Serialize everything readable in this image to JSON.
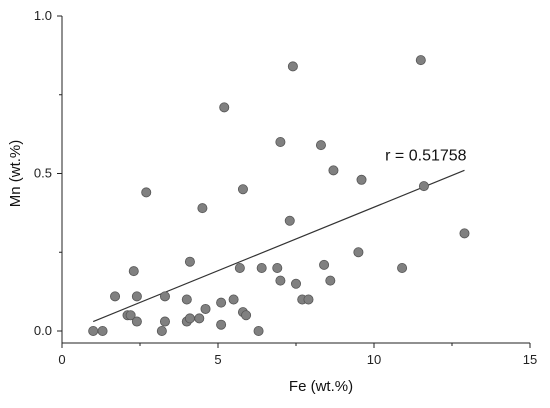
{
  "chart_data": {
    "type": "scatter",
    "xlabel": "Fe (wt.%)",
    "ylabel": "Mn (wt.%)",
    "xlim": [
      0,
      15
    ],
    "ylim": [
      0,
      1.0
    ],
    "x_ticks": [
      "0",
      "5",
      "10",
      "15"
    ],
    "y_ticks": [
      "0.0",
      "0.5",
      "1.0"
    ],
    "grid": false,
    "colors": {
      "point": "#808080",
      "point_edge": "#555555",
      "line": "#333333"
    },
    "annotation": {
      "text": "r = 0.51758",
      "x": 11.8,
      "y": 0.56
    },
    "trendline": {
      "x": [
        1.0,
        12.9
      ],
      "y": [
        0.03,
        0.51
      ]
    },
    "points": [
      {
        "x": 1.0,
        "y": 0.0
      },
      {
        "x": 1.3,
        "y": 0.0
      },
      {
        "x": 1.7,
        "y": 0.11
      },
      {
        "x": 2.1,
        "y": 0.05
      },
      {
        "x": 2.2,
        "y": 0.05
      },
      {
        "x": 2.3,
        "y": 0.19
      },
      {
        "x": 2.4,
        "y": 0.03
      },
      {
        "x": 2.4,
        "y": 0.11
      },
      {
        "x": 2.7,
        "y": 0.44
      },
      {
        "x": 3.2,
        "y": 0.0
      },
      {
        "x": 3.3,
        "y": 0.11
      },
      {
        "x": 3.3,
        "y": 0.03
      },
      {
        "x": 4.0,
        "y": 0.1
      },
      {
        "x": 4.0,
        "y": 0.03
      },
      {
        "x": 4.1,
        "y": 0.22
      },
      {
        "x": 4.1,
        "y": 0.04
      },
      {
        "x": 4.4,
        "y": 0.04
      },
      {
        "x": 4.5,
        "y": 0.39
      },
      {
        "x": 4.6,
        "y": 0.07
      },
      {
        "x": 5.1,
        "y": 0.09
      },
      {
        "x": 5.1,
        "y": 0.02
      },
      {
        "x": 5.2,
        "y": 0.71
      },
      {
        "x": 5.5,
        "y": 0.1
      },
      {
        "x": 5.7,
        "y": 0.2
      },
      {
        "x": 5.8,
        "y": 0.06
      },
      {
        "x": 5.8,
        "y": 0.45
      },
      {
        "x": 5.9,
        "y": 0.05
      },
      {
        "x": 6.3,
        "y": 0.0
      },
      {
        "x": 6.4,
        "y": 0.2
      },
      {
        "x": 6.9,
        "y": 0.2
      },
      {
        "x": 7.0,
        "y": 0.6
      },
      {
        "x": 7.0,
        "y": 0.16
      },
      {
        "x": 7.3,
        "y": 0.35
      },
      {
        "x": 7.4,
        "y": 0.84
      },
      {
        "x": 7.5,
        "y": 0.15
      },
      {
        "x": 7.7,
        "y": 0.1
      },
      {
        "x": 7.9,
        "y": 0.1
      },
      {
        "x": 8.3,
        "y": 0.59
      },
      {
        "x": 8.4,
        "y": 0.21
      },
      {
        "x": 8.6,
        "y": 0.16
      },
      {
        "x": 8.7,
        "y": 0.51
      },
      {
        "x": 9.5,
        "y": 0.25
      },
      {
        "x": 9.6,
        "y": 0.48
      },
      {
        "x": 10.9,
        "y": 0.2
      },
      {
        "x": 11.5,
        "y": 0.86
      },
      {
        "x": 11.6,
        "y": 0.46
      },
      {
        "x": 12.9,
        "y": 0.31
      }
    ]
  }
}
